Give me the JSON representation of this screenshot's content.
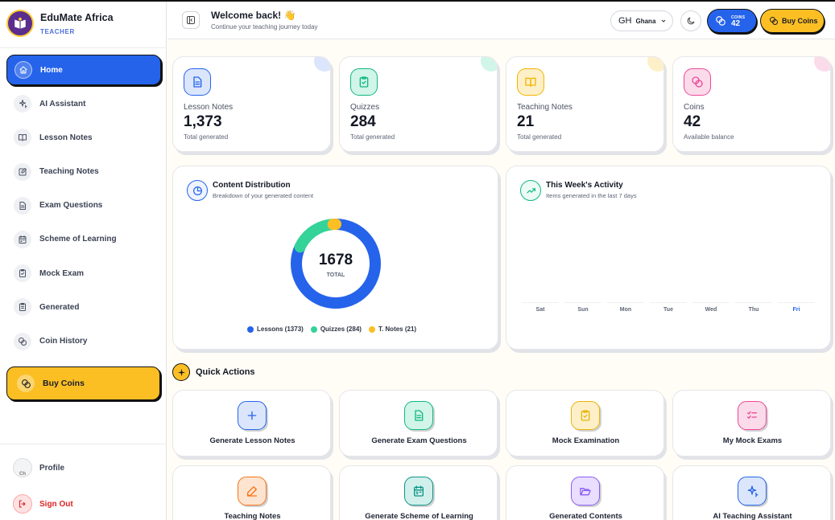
{
  "brand": {
    "title": "EduMate Africa",
    "role": "TEACHER"
  },
  "sidebar": {
    "items": [
      {
        "label": "Home",
        "icon": "home-icon",
        "active": true
      },
      {
        "label": "AI Assistant",
        "icon": "sparkles-icon"
      },
      {
        "label": "Lesson Notes",
        "icon": "book-open-icon"
      },
      {
        "label": "Teaching Notes",
        "icon": "edit-note-icon"
      },
      {
        "label": "Exam Questions",
        "icon": "document-icon"
      },
      {
        "label": "Scheme of Learning",
        "icon": "calendar-icon"
      },
      {
        "label": "Mock Exam",
        "icon": "clipboard-check-icon"
      },
      {
        "label": "Generated",
        "icon": "clipboard-list-icon"
      },
      {
        "label": "Coin History",
        "icon": "coins-icon"
      }
    ],
    "buy_coins": "Buy Coins",
    "profile": "Profile",
    "profile_avatar_alt": "Ch",
    "sign_out": "Sign Out"
  },
  "header": {
    "welcome": "Welcome back! 👋",
    "subtitle": "Continue your teaching journey today",
    "country_code": "GH",
    "country_name": "Ghana",
    "coins_label": "COINS",
    "coins_value": "42",
    "buy_coins": "Buy Coins"
  },
  "stats": [
    {
      "label": "Lesson Notes",
      "value": "1,373",
      "sub": "Total generated",
      "color": "#2563eb",
      "bg": "#dbe6fd",
      "icon": "document-icon"
    },
    {
      "label": "Quizzes",
      "value": "284",
      "sub": "Total generated",
      "color": "#10b981",
      "bg": "#d1f5e8",
      "icon": "clipboard-check-icon"
    },
    {
      "label": "Teaching Notes",
      "value": "21",
      "sub": "Total generated",
      "color": "#f5b400",
      "bg": "#fdf0c8",
      "icon": "book-open-icon"
    },
    {
      "label": "Coins",
      "value": "42",
      "sub": "Available balance",
      "color": "#ec4899",
      "bg": "#fbdbe9",
      "icon": "coins-icon"
    }
  ],
  "distribution": {
    "title": "Content Distribution",
    "subtitle": "Breakdown of your generated content",
    "total": "1678",
    "total_label": "TOTAL",
    "legend": [
      "Lessons (1373)",
      "Quizzes (284)",
      "T. Notes (21)"
    ]
  },
  "activity": {
    "title": "This Week's Activity",
    "subtitle": "Items generated in the last 7 days"
  },
  "chart_data": [
    {
      "type": "pie",
      "categories": [
        "Lessons",
        "Quizzes",
        "T. Notes"
      ],
      "values": [
        1373,
        284,
        21
      ],
      "colors": [
        "#2563eb",
        "#34d399",
        "#fbbf24"
      ],
      "legend": "bottom"
    },
    {
      "type": "bar",
      "categories": [
        "Sat",
        "Sun",
        "Mon",
        "Tue",
        "Wed",
        "Thu",
        "Fri"
      ],
      "values": [
        0,
        0,
        0,
        0,
        0,
        0,
        0
      ],
      "highlight": "Fri"
    }
  ],
  "quick_actions": {
    "title": "Quick Actions",
    "items": [
      {
        "label": "Generate Lesson Notes",
        "color": "#2563eb",
        "bg": "#dbe6fd",
        "icon": "plus-icon"
      },
      {
        "label": "Generate Exam Questions",
        "color": "#10b981",
        "bg": "#d1f5e8",
        "icon": "document-icon"
      },
      {
        "label": "Mock Examination",
        "color": "#eab308",
        "bg": "#fdf0c8",
        "icon": "clipboard-check-icon"
      },
      {
        "label": "My Mock Exams",
        "color": "#ec4899",
        "bg": "#fbdbe9",
        "icon": "list-check-icon"
      },
      {
        "label": "Teaching Notes",
        "color": "#f97316",
        "bg": "#fde4d0",
        "icon": "pen-icon"
      },
      {
        "label": "Generate Scheme of Learning",
        "color": "#0d9488",
        "bg": "#d1f0ec",
        "icon": "calendar-icon"
      },
      {
        "label": "Generated Contents",
        "color": "#8b5cf6",
        "bg": "#e9defd",
        "icon": "folder-open-icon"
      },
      {
        "label": "AI Teaching Assistant",
        "color": "#2563eb",
        "bg": "#dbe6fd",
        "icon": "sparkles-icon"
      }
    ]
  }
}
